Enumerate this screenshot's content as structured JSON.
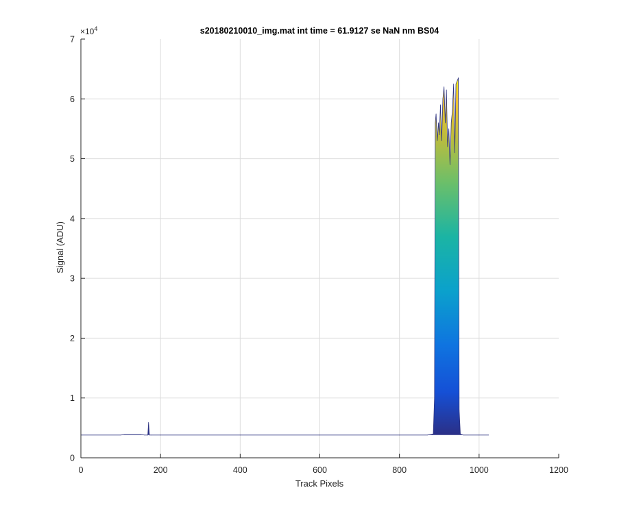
{
  "chart_data": {
    "type": "area",
    "title": "s20180210010_img.mat int time = 61.9127 se  NaN nm BS04",
    "xlabel": "Track Pixels",
    "ylabel": "Signal (ADU)",
    "xlim": [
      0,
      1200
    ],
    "ylim": [
      0,
      70000
    ],
    "x_ticks": [
      0,
      200,
      400,
      600,
      800,
      1000,
      1200
    ],
    "x_tick_labels": [
      "0",
      "200",
      "400",
      "600",
      "800",
      "1000",
      "1200"
    ],
    "y_ticks": [
      0,
      10000,
      20000,
      30000,
      40000,
      50000,
      60000,
      70000
    ],
    "y_tick_labels": [
      "0",
      "1",
      "2",
      "3",
      "4",
      "5",
      "6",
      "7"
    ],
    "y_exponent_label": "×10",
    "y_exponent_power": "4",
    "grid": true,
    "colormap": "parula",
    "baseline": 3800,
    "x": [
      0,
      100,
      110,
      150,
      160,
      168,
      170,
      172,
      176,
      200,
      400,
      600,
      800,
      870,
      885,
      888,
      890,
      892,
      895,
      898,
      900,
      903,
      906,
      909,
      912,
      915,
      918,
      921,
      924,
      927,
      930,
      933,
      936,
      939,
      942,
      945,
      948,
      950,
      953,
      960,
      1000,
      1024
    ],
    "y": [
      3800,
      3800,
      3900,
      3900,
      3800,
      3800,
      5900,
      3800,
      3800,
      3800,
      3800,
      3800,
      3800,
      3800,
      4000,
      10000,
      56000,
      57500,
      53000,
      56000,
      54000,
      59000,
      53000,
      60000,
      62000,
      56000,
      61500,
      52000,
      55000,
      49000,
      56000,
      58000,
      62500,
      51000,
      62500,
      63000,
      63500,
      8000,
      4000,
      3800,
      3800,
      3800
    ]
  }
}
